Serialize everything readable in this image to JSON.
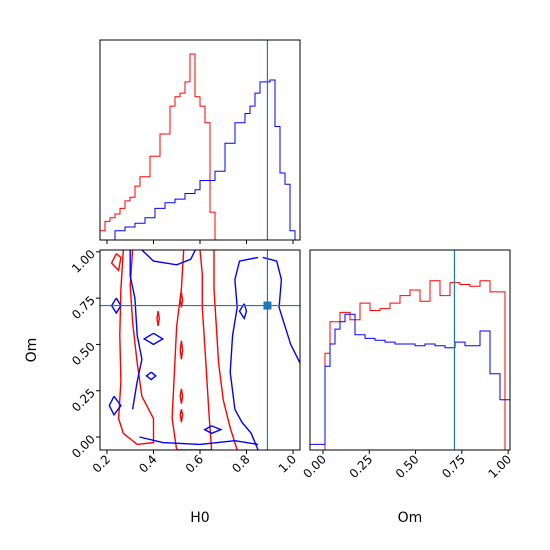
{
  "chart_data": [
    {
      "panel": "H0 marginal",
      "type": "histogram",
      "xlim": [
        0.17,
        1.03
      ],
      "ylim": [
        0,
        1
      ],
      "bin_edges": [
        0.17,
        0.1915,
        0.213,
        0.2345,
        0.256,
        0.2775,
        0.299,
        0.3205,
        0.342,
        0.3635,
        0.385,
        0.4065,
        0.428,
        0.4495,
        0.471,
        0.4925,
        0.514,
        0.5355,
        0.557,
        0.5785,
        0.6,
        0.6215,
        0.643,
        0.6645,
        0.686,
        0.7075,
        0.729,
        0.7505,
        0.772,
        0.7935,
        0.815,
        0.8365,
        0.858,
        0.8795,
        0.901,
        0.9225,
        0.944,
        0.9655,
        0.987,
        1.0085,
        1.03
      ],
      "series": [
        {
          "color": "#ff0000",
          "counts": [
            0.05,
            0.1,
            0.12,
            0.14,
            0.17,
            0.21,
            0.23,
            0.29,
            0.34,
            0.34,
            0.45,
            0.45,
            0.57,
            0.57,
            0.72,
            0.77,
            0.79,
            0.85,
            1.0,
            0.77,
            0.72,
            0.63,
            0.15,
            0,
            0,
            0,
            0,
            0,
            0,
            0,
            0,
            0,
            0,
            0,
            0,
            0,
            0,
            0,
            0,
            0
          ]
        },
        {
          "color": "#0000ff",
          "counts": [
            0,
            0,
            0,
            0.05,
            0.05,
            0.07,
            0.07,
            0.09,
            0.09,
            0.12,
            0.12,
            0.17,
            0.17,
            0.2,
            0.2,
            0.22,
            0.22,
            0.25,
            0.25,
            0.27,
            0.32,
            0.32,
            0.32,
            0.37,
            0.37,
            0.52,
            0.52,
            0.63,
            0.63,
            0.68,
            0.72,
            0.79,
            0.85,
            0.85,
            0.86,
            0.61,
            0.36,
            0.3,
            0.05,
            0
          ]
        }
      ],
      "truth": {
        "x": 0.89,
        "color": "#1f77b4"
      }
    },
    {
      "panel": "Om marginal",
      "type": "histogram",
      "xlim": [
        -0.07,
        1.01
      ],
      "ylim": [
        0,
        1
      ],
      "bin_edges": [
        -0.07,
        -0.043,
        -0.016,
        0.011,
        0.038,
        0.065,
        0.092,
        0.119,
        0.146,
        0.173,
        0.2,
        0.227,
        0.254,
        0.281,
        0.308,
        0.335,
        0.362,
        0.389,
        0.416,
        0.443,
        0.47,
        0.497,
        0.524,
        0.551,
        0.578,
        0.605,
        0.632,
        0.659,
        0.686,
        0.713,
        0.74,
        0.767,
        0.794,
        0.821,
        0.848,
        0.875,
        0.902,
        0.929,
        0.956,
        0.983,
        1.01
      ],
      "series": [
        {
          "color": "#ff0000",
          "counts": [
            0,
            0,
            0,
            0.52,
            0.69,
            0.69,
            0.74,
            0.74,
            0.7,
            0.7,
            0.79,
            0.79,
            0.75,
            0.75,
            0.76,
            0.76,
            0.79,
            0.79,
            0.83,
            0.83,
            0.86,
            0.86,
            0.8,
            0.8,
            0.91,
            0.91,
            0.83,
            0.83,
            0.9,
            0.9,
            0.89,
            0.89,
            0.88,
            0.88,
            0.91,
            0.91,
            0.85,
            0.85,
            0.85,
            0
          ]
        },
        {
          "color": "#0000ff",
          "counts": [
            0.03,
            0.03,
            0.03,
            0.45,
            0.57,
            0.65,
            0.69,
            0.73,
            0.73,
            0.62,
            0.62,
            0.6,
            0.6,
            0.59,
            0.59,
            0.58,
            0.58,
            0.57,
            0.57,
            0.57,
            0.57,
            0.56,
            0.56,
            0.57,
            0.57,
            0.56,
            0.56,
            0.55,
            0.55,
            0.58,
            0.58,
            0.56,
            0.56,
            0.56,
            0.64,
            0.64,
            0.41,
            0.41,
            0.27,
            0.27
          ]
        }
      ],
      "truth": {
        "x": 0.71,
        "color": "#1f77b4"
      }
    },
    {
      "panel": "H0 vs Om joint",
      "type": "contour",
      "xlabel": "H0",
      "ylabel": "Om",
      "xlim": [
        0.17,
        1.03
      ],
      "ylim": [
        -0.07,
        1.01
      ],
      "xticks": [
        "0.2",
        "0.4",
        "0.6",
        "0.8",
        "1.0"
      ],
      "yticks": [
        "0.00",
        "0.25",
        "0.50",
        "0.75",
        "1.00"
      ],
      "series": [
        {
          "color": "#ff0000",
          "contours": [
            [
              [
                0.27,
                1.01
              ],
              [
                0.26,
                0.8
              ],
              [
                0.255,
                0.55
              ],
              [
                0.26,
                0.3
              ],
              [
                0.25,
                0.1
              ],
              [
                0.27,
                0.02
              ],
              [
                0.33,
                -0.04
              ],
              [
                0.4,
                -0.03
              ],
              [
                0.4,
                0.1
              ],
              [
                0.35,
                0.22
              ],
              [
                0.33,
                0.4
              ],
              [
                0.31,
                0.62
              ],
              [
                0.3,
                0.82
              ],
              [
                0.31,
                1.01
              ]
            ],
            [
              [
                0.53,
                1.01
              ],
              [
                0.52,
                0.8
              ],
              [
                0.5,
                0.6
              ],
              [
                0.49,
                0.35
              ],
              [
                0.48,
                0.1
              ],
              [
                0.5,
                -0.07
              ],
              [
                0.65,
                -0.07
              ],
              [
                0.64,
                0.1
              ],
              [
                0.63,
                0.3
              ],
              [
                0.62,
                0.5
              ],
              [
                0.61,
                0.7
              ],
              [
                0.61,
                0.88
              ],
              [
                0.6,
                1.01
              ]
            ],
            [
              [
                0.66,
                1.01
              ],
              [
                0.66,
                0.8
              ],
              [
                0.67,
                0.6
              ],
              [
                0.68,
                0.4
              ],
              [
                0.7,
                0.2
              ],
              [
                0.73,
                0.05
              ],
              [
                0.76,
                -0.07
              ]
            ],
            [
              [
                0.24,
                0.99
              ],
              [
                0.22,
                0.94
              ],
              [
                0.25,
                0.9
              ],
              [
                0.26,
                0.97
              ],
              [
                0.24,
                0.99
              ]
            ],
            [
              [
                0.42,
                0.68
              ],
              [
                0.415,
                0.64
              ],
              [
                0.42,
                0.6
              ],
              [
                0.425,
                0.64
              ],
              [
                0.42,
                0.68
              ]
            ],
            [
              [
                0.52,
                0.78
              ],
              [
                0.515,
                0.74
              ],
              [
                0.52,
                0.7
              ],
              [
                0.525,
                0.74
              ],
              [
                0.52,
                0.78
              ]
            ],
            [
              [
                0.52,
                0.52
              ],
              [
                0.515,
                0.47
              ],
              [
                0.52,
                0.42
              ],
              [
                0.525,
                0.47
              ],
              [
                0.52,
                0.52
              ]
            ],
            [
              [
                0.52,
                0.26
              ],
              [
                0.515,
                0.22
              ],
              [
                0.52,
                0.18
              ],
              [
                0.525,
                0.22
              ],
              [
                0.52,
                0.26
              ]
            ],
            [
              [
                0.52,
                0.15
              ],
              [
                0.515,
                0.12
              ],
              [
                0.52,
                0.08
              ],
              [
                0.525,
                0.12
              ],
              [
                0.52,
                0.15
              ]
            ]
          ]
        },
        {
          "color": "#0000ff",
          "contours": [
            [
              [
                0.35,
                1.01
              ],
              [
                0.4,
                0.95
              ],
              [
                0.5,
                0.93
              ],
              [
                0.56,
                0.96
              ],
              [
                0.58,
                1.01
              ]
            ],
            [
              [
                0.31,
                0.15
              ],
              [
                0.33,
                0.3
              ],
              [
                0.35,
                0.42
              ],
              [
                0.33,
                0.55
              ],
              [
                0.32,
                0.75
              ],
              [
                0.3,
                0.87
              ],
              [
                0.3,
                1.01
              ]
            ],
            [
              [
                0.85,
                0.97
              ],
              [
                0.77,
                0.95
              ],
              [
                0.75,
                0.85
              ],
              [
                0.76,
                0.7
              ],
              [
                0.74,
                0.55
              ],
              [
                0.73,
                0.35
              ],
              [
                0.75,
                0.15
              ],
              [
                0.78,
                0.08
              ],
              [
                0.82,
                0.02
              ],
              [
                0.85,
                -0.07
              ]
            ],
            [
              [
                0.87,
                0.97
              ],
              [
                0.93,
                0.95
              ],
              [
                0.95,
                0.85
              ],
              [
                0.94,
                0.7
              ],
              [
                0.99,
                0.5
              ],
              [
                1.03,
                0.4
              ]
            ],
            [
              [
                0.24,
                0.75
              ],
              [
                0.22,
                0.71
              ],
              [
                0.24,
                0.67
              ],
              [
                0.26,
                0.71
              ],
              [
                0.24,
                0.75
              ]
            ],
            [
              [
                0.23,
                0.22
              ],
              [
                0.21,
                0.17
              ],
              [
                0.23,
                0.12
              ],
              [
                0.26,
                0.17
              ],
              [
                0.23,
                0.22
              ]
            ],
            [
              [
                0.4,
                0.56
              ],
              [
                0.36,
                0.53
              ],
              [
                0.4,
                0.5
              ],
              [
                0.44,
                0.53
              ],
              [
                0.4,
                0.56
              ]
            ],
            [
              [
                0.39,
                0.35
              ],
              [
                0.37,
                0.33
              ],
              [
                0.39,
                0.31
              ],
              [
                0.41,
                0.33
              ],
              [
                0.39,
                0.35
              ]
            ],
            [
              [
                0.79,
                0.72
              ],
              [
                0.77,
                0.68
              ],
              [
                0.79,
                0.64
              ],
              [
                0.8,
                0.68
              ],
              [
                0.79,
                0.72
              ]
            ],
            [
              [
                0.65,
                0.06
              ],
              [
                0.62,
                0.04
              ],
              [
                0.65,
                0.02
              ],
              [
                0.69,
                0.04
              ],
              [
                0.65,
                0.06
              ]
            ],
            [
              [
                0.34,
                0.0
              ],
              [
                0.44,
                -0.03
              ],
              [
                0.6,
                -0.04
              ],
              [
                0.75,
                -0.02
              ],
              [
                0.85,
                -0.04
              ]
            ]
          ]
        }
      ],
      "truth": {
        "x": 0.89,
        "y": 0.71,
        "color": "#1f77b4"
      }
    },
    {
      "panel": "Om marginal axis",
      "xlabel": "Om",
      "xticks": [
        "0.00",
        "0.25",
        "0.50",
        "0.75",
        "1.00"
      ]
    }
  ]
}
